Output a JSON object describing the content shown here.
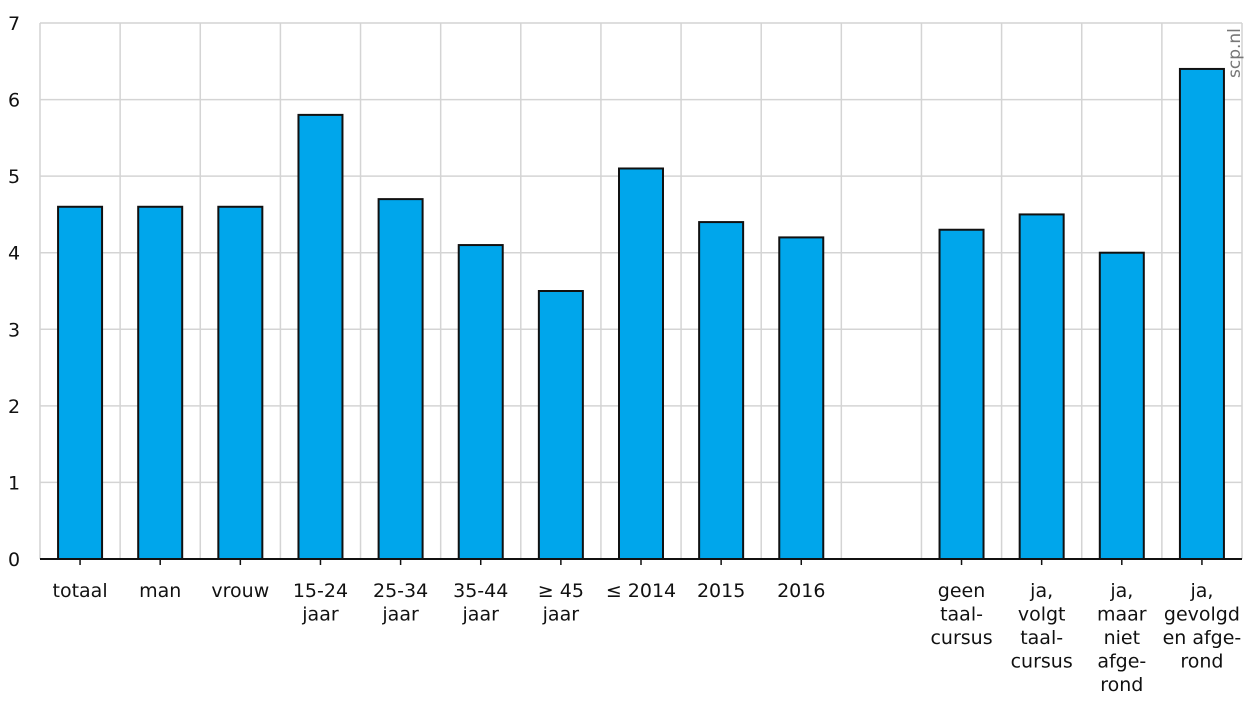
{
  "chart_data": {
    "type": "bar",
    "categories": [
      [
        "totaal"
      ],
      [
        "man"
      ],
      [
        "vrouw"
      ],
      [
        "15-24",
        "jaar"
      ],
      [
        "25-34",
        "jaar"
      ],
      [
        "35-44",
        "jaar"
      ],
      [
        "≥ 45",
        "jaar"
      ],
      [
        "≤ 2014"
      ],
      [
        "2015"
      ],
      [
        "2016"
      ],
      [],
      [
        "geen",
        "taal-",
        "cursus"
      ],
      [
        "ja,",
        "volgt",
        "taal-",
        "cursus"
      ],
      [
        "ja,",
        "maar",
        "niet",
        "afge-",
        "rond"
      ],
      [
        "ja,",
        "gevolgd",
        "en afge-",
        "rond"
      ]
    ],
    "values": [
      4.6,
      4.6,
      4.6,
      5.8,
      4.7,
      4.1,
      3.5,
      5.1,
      4.4,
      4.2,
      null,
      4.3,
      4.5,
      4.0,
      6.4
    ],
    "ylim": [
      0,
      7
    ],
    "yticks": [
      "0",
      "1",
      "2",
      "3",
      "4",
      "5",
      "6",
      "7"
    ],
    "grid": true,
    "bar_color": "#00a6eb",
    "bar_stroke": "#111111",
    "grid_color": "#d4d4d4"
  },
  "watermark": "scp.nl"
}
